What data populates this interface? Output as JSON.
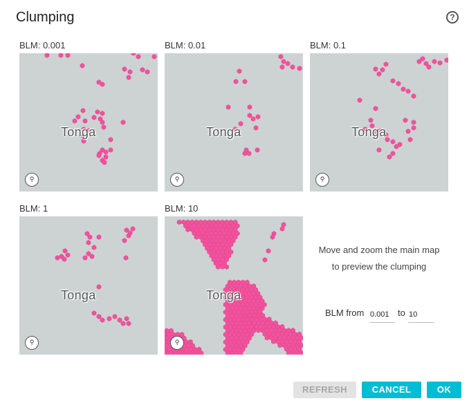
{
  "dialog": {
    "title": "Clumping",
    "help_icon": "help-circle-icon",
    "help_glyph": "?"
  },
  "previews": [
    {
      "label": "BLM: 0.001",
      "map_label": "Tonga",
      "attribution_icon": "map-attribution-icon",
      "attribution_glyph": "⚲"
    },
    {
      "label": "BLM: 0.01",
      "map_label": "Tonga",
      "attribution_icon": "map-attribution-icon",
      "attribution_glyph": "⚲"
    },
    {
      "label": "BLM: 0.1",
      "map_label": "Tonga",
      "attribution_icon": "map-attribution-icon",
      "attribution_glyph": "⚲"
    },
    {
      "label": "BLM: 1",
      "map_label": "Tonga",
      "attribution_icon": "map-attribution-icon",
      "attribution_glyph": "⚲"
    },
    {
      "label": "BLM: 10",
      "map_label": "Tonga",
      "attribution_icon": "map-attribution-icon",
      "attribution_glyph": "⚲"
    }
  ],
  "instructions": {
    "line1": "Move and zoom the main map",
    "line2": "to preview the clumping"
  },
  "blm_range": {
    "from_label": "BLM from",
    "from_value": "0.001",
    "to_label": "to",
    "to_value": "10"
  },
  "buttons": {
    "refresh": "REFRESH",
    "cancel": "CANCEL",
    "ok": "OK"
  },
  "colors": {
    "planning_unit": "#f0529c",
    "map_background": "#cdd3d3",
    "accent": "#00bcd4"
  }
}
